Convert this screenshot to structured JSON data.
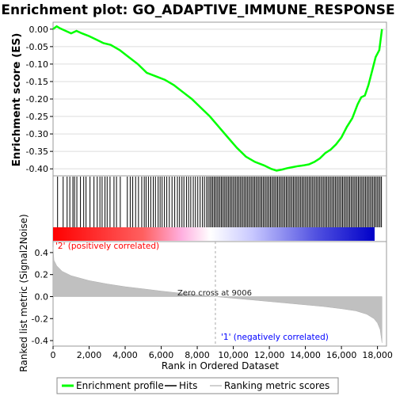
{
  "chart_data": {
    "type": "line",
    "title": "Enrichment plot: GO_ADAPTIVE_IMMUNE_RESPONSE",
    "top_panel": {
      "ylabel": "Enrichment score (ES)",
      "ylim": [
        -0.42,
        0.02
      ],
      "yticks": [
        0.0,
        -0.05,
        -0.1,
        -0.15,
        -0.2,
        -0.25,
        -0.3,
        -0.35,
        -0.4
      ],
      "ytick_labels": [
        "0.00",
        "-0.05",
        "-0.10",
        "-0.15",
        "-0.20",
        "-0.25",
        "-0.30",
        "-0.35",
        "-0.40"
      ],
      "grid": true,
      "series": [
        {
          "name": "Enrichment profile",
          "color": "#00ff00",
          "x": [
            0,
            200,
            400,
            700,
            1000,
            1300,
            1600,
            2000,
            2400,
            2800,
            3200,
            3700,
            4200,
            4700,
            5200,
            5700,
            6200,
            6700,
            7200,
            7700,
            8200,
            8700,
            9200,
            9700,
            10200,
            10700,
            11200,
            11700,
            12100,
            12400,
            12700,
            13000,
            13300,
            13600,
            13900,
            14200,
            14500,
            14800,
            15100,
            15400,
            15700,
            16000,
            16300,
            16600,
            16900,
            17100,
            17300,
            17500,
            17700,
            17900,
            18100,
            18250
          ],
          "y": [
            0.0,
            0.008,
            0.002,
            -0.005,
            -0.012,
            -0.005,
            -0.012,
            -0.02,
            -0.03,
            -0.04,
            -0.045,
            -0.06,
            -0.08,
            -0.1,
            -0.125,
            -0.135,
            -0.145,
            -0.16,
            -0.18,
            -0.2,
            -0.225,
            -0.25,
            -0.28,
            -0.31,
            -0.34,
            -0.365,
            -0.38,
            -0.39,
            -0.4,
            -0.405,
            -0.402,
            -0.398,
            -0.395,
            -0.392,
            -0.39,
            -0.387,
            -0.38,
            -0.37,
            -0.355,
            -0.345,
            -0.33,
            -0.31,
            -0.28,
            -0.255,
            -0.215,
            -0.195,
            -0.19,
            -0.16,
            -0.12,
            -0.08,
            -0.06,
            0.0
          ]
        }
      ]
    },
    "hits_panel": {
      "series_name": "Hits",
      "hit_ranks": [
        250,
        560,
        780,
        930,
        1100,
        1190,
        1320,
        1520,
        1700,
        1830,
        2050,
        2270,
        2450,
        2600,
        2720,
        2880,
        3000,
        3160,
        3380,
        3520,
        3730,
        4120,
        4280,
        4420,
        4580,
        4740,
        4920,
        5060,
        5160,
        5290,
        5420,
        5560,
        5680,
        5830,
        5940,
        6050,
        6180,
        6310,
        6450,
        6600,
        6750,
        6900,
        7020,
        7150,
        7260,
        7400,
        7520,
        7640,
        7780,
        7900,
        8030,
        8160,
        8290,
        8400,
        8520,
        8610,
        8700,
        8780,
        8860,
        8940,
        9020,
        9100,
        9180,
        9260,
        9340,
        9420,
        9500,
        9580,
        9660,
        9740,
        9820,
        9900,
        9980,
        10060,
        10140,
        10220,
        10300,
        10380,
        10460,
        10540,
        10620,
        10700,
        10780,
        10860,
        10940,
        11020,
        11100,
        11180,
        11260,
        11340,
        11420,
        11500,
        11580,
        11660,
        11740,
        11820,
        11900,
        11980,
        12060,
        12140,
        12220,
        12300,
        12380,
        12460,
        12540,
        12620,
        12700,
        12780,
        12860,
        12940,
        13020,
        13100,
        13180,
        13260,
        13340,
        13420,
        13500,
        13580,
        13660,
        13740,
        13820,
        13900,
        13980,
        14060,
        14140,
        14220,
        14300,
        14380,
        14460,
        14540,
        14620,
        14700,
        14780,
        14860,
        14940,
        15020,
        15100,
        15180,
        15260,
        15340,
        15420,
        15500,
        15580,
        15660,
        15740,
        15820,
        15900,
        15980,
        16060,
        16140,
        16220,
        16300,
        16380,
        16460,
        16540,
        16620,
        16700,
        16780,
        16860,
        16940,
        17020,
        17100,
        17180,
        17260,
        17340,
        17420,
        17500,
        17580,
        17660,
        17740,
        17820,
        17900,
        17980,
        18060,
        18140,
        18220
      ]
    },
    "bottom_panel": {
      "ylabel": "Ranked list metric (Signal2Noise)",
      "xlabel": "Rank in Ordered Dataset",
      "xlim": [
        0,
        18500
      ],
      "ylim": [
        -0.45,
        0.5
      ],
      "xticks": [
        0,
        2000,
        4000,
        6000,
        8000,
        10000,
        12000,
        14000,
        16000,
        18000
      ],
      "xtick_labels": [
        "0",
        "2,000",
        "4,000",
        "6,000",
        "8,000",
        "10,000",
        "12,000",
        "14,000",
        "16,000",
        "18,000"
      ],
      "yticks": [
        0.4,
        0.2,
        0.0,
        -0.2,
        -0.4
      ],
      "ytick_labels": [
        "0.4",
        "0.2",
        "0.0",
        "-0.2",
        "-0.4"
      ],
      "series": [
        {
          "name": "Ranking metric scores",
          "color": "#c0c0c0",
          "x": [
            0,
            50,
            200,
            500,
            1000,
            2000,
            3000,
            4000,
            5000,
            6000,
            7000,
            8000,
            9006,
            10000,
            11000,
            12000,
            13000,
            14000,
            15000,
            16000,
            16800,
            17400,
            17800,
            18000,
            18150,
            18250
          ],
          "y": [
            0.45,
            0.33,
            0.28,
            0.23,
            0.19,
            0.145,
            0.115,
            0.09,
            0.07,
            0.05,
            0.032,
            0.015,
            0.0,
            -0.015,
            -0.03,
            -0.045,
            -0.06,
            -0.075,
            -0.09,
            -0.11,
            -0.13,
            -0.16,
            -0.2,
            -0.24,
            -0.3,
            -0.42
          ]
        }
      ],
      "annotations": {
        "zero_cross": "Zero cross at 9006",
        "zero_cross_rank": 9006,
        "positive_label": "'2' (positively correlated)",
        "negative_label": "'1' (negatively correlated)"
      }
    },
    "legend": {
      "placement": "bottom",
      "entries": [
        {
          "label": "Enrichment profile",
          "color": "#00ff00"
        },
        {
          "label": "Hits",
          "color": "#000000"
        },
        {
          "label": "Ranking metric scores",
          "color": "#c0c0c0"
        }
      ]
    },
    "colors": {
      "positive_label": "#ff0000",
      "negative_label": "#0000ff",
      "positive_bar": "#ff0000",
      "negative_bar": "#0000ff",
      "mid_bar": "#ffffff"
    }
  }
}
